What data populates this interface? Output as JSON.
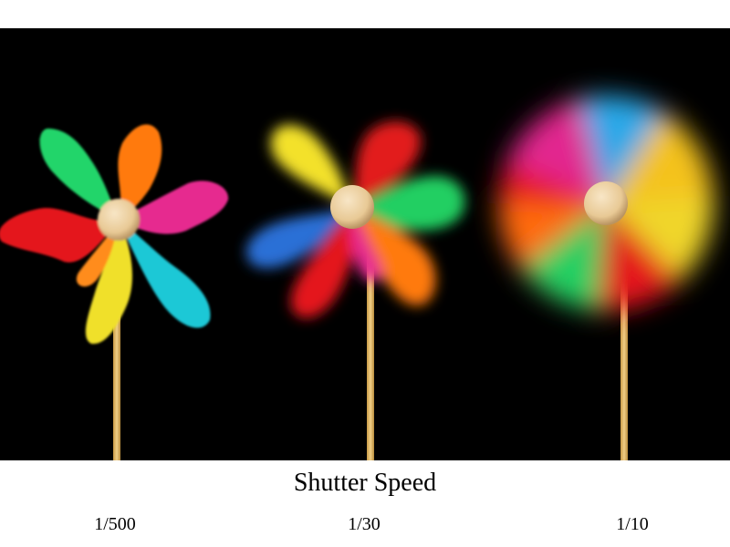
{
  "caption": {
    "title": "Shutter Speed"
  },
  "panels": [
    {
      "label": "1/500",
      "motion": "sharp"
    },
    {
      "label": "1/30",
      "motion": "partially blurred"
    },
    {
      "label": "1/10",
      "motion": "fully blurred"
    }
  ],
  "colors": {
    "background": "#000000",
    "page": "#ffffff",
    "stick": "#e2b86a",
    "hub": "#efd3a8",
    "blade_red": "#e4161b",
    "blade_orange": "#ff7a0a",
    "blade_pink": "#e62c8f",
    "blade_cyan": "#1fc8d6",
    "blade_yellow": "#f0e02a",
    "blade_green": "#1ecf5b"
  }
}
